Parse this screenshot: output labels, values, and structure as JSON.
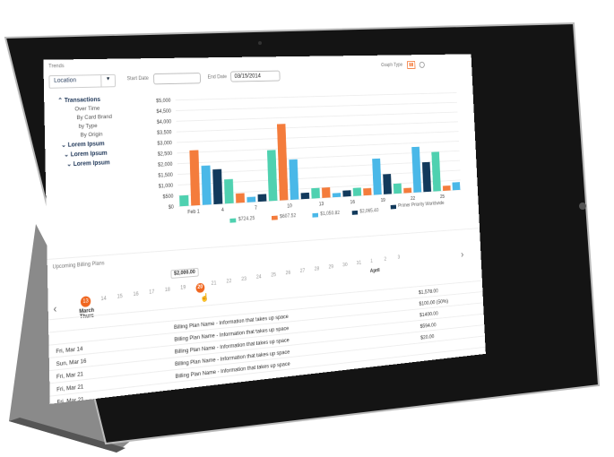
{
  "app": {
    "section_title": "Trends"
  },
  "filters": {
    "location_label": "Location",
    "start_date_label": "Start Date",
    "start_date_value": "",
    "end_date_label": "End Date",
    "end_date_value": "03/15/2014",
    "graph_type_label": "Graph Type"
  },
  "sidebar": {
    "groups": [
      {
        "label": "Transactions",
        "expanded": true,
        "items": [
          "Over Time",
          "By Card Brand",
          "by Type",
          "By Origin"
        ]
      },
      {
        "label": "Lorem Ipsum",
        "expanded": false
      },
      {
        "label": "Lorem Ipsum",
        "expanded": false
      },
      {
        "label": "Lorem Ipsum",
        "expanded": false
      }
    ]
  },
  "colors": {
    "teal": "#4fd1b0",
    "orange": "#f47c3c",
    "blue": "#4ab8e8",
    "navy": "#123a5c",
    "accent": "#f0661f"
  },
  "chart_data": {
    "type": "bar",
    "y_ticks": [
      "$0",
      "$500",
      "$1,000",
      "$1,500",
      "$2,000",
      "$2,500",
      "$3,000",
      "$3,500",
      "$4,000",
      "$4,500",
      "$5,000"
    ],
    "ylim": [
      0,
      5000
    ],
    "x_ticks": [
      "Feb 1",
      "4",
      "7",
      "10",
      "13",
      "16",
      "19",
      "22",
      "25"
    ],
    "bars": [
      {
        "s": 0,
        "v": 500
      },
      {
        "s": 1,
        "v": 2600
      },
      {
        "s": 2,
        "v": 1850
      },
      {
        "s": 3,
        "v": 1650
      },
      {
        "s": 0,
        "v": 1150
      },
      {
        "s": 1,
        "v": 450
      },
      {
        "s": 2,
        "v": 250
      },
      {
        "s": 3,
        "v": 350
      },
      {
        "s": 0,
        "v": 2450
      },
      {
        "s": 1,
        "v": 3700
      },
      {
        "s": 2,
        "v": 1950
      },
      {
        "s": 3,
        "v": 300
      },
      {
        "s": 0,
        "v": 500
      },
      {
        "s": 1,
        "v": 500
      },
      {
        "s": 2,
        "v": 200
      },
      {
        "s": 3,
        "v": 300
      },
      {
        "s": 0,
        "v": 400
      },
      {
        "s": 1,
        "v": 350
      },
      {
        "s": 2,
        "v": 1800
      },
      {
        "s": 3,
        "v": 1000
      },
      {
        "s": 0,
        "v": 500
      },
      {
        "s": 1,
        "v": 250
      },
      {
        "s": 2,
        "v": 2300
      },
      {
        "s": 3,
        "v": 1500
      },
      {
        "s": 0,
        "v": 2000
      },
      {
        "s": 1,
        "v": 250
      },
      {
        "s": 2,
        "v": 400
      }
    ],
    "legend": [
      {
        "name": "$724.25",
        "color": "#4fd1b0"
      },
      {
        "name": "$607.52",
        "color": "#f47c3c"
      },
      {
        "name": "$1,050.82",
        "color": "#4ab8e8"
      },
      {
        "name": "$2,065.40",
        "color": "#123a5c"
      },
      {
        "name": "Primer Priority Worldwide",
        "color": "#123a5c"
      }
    ],
    "grid": true
  },
  "billing": {
    "title": "Upcoming Billing Plans",
    "tooltip": "$2,000.00",
    "today": {
      "day": "13",
      "month": "March",
      "weekday": "Thurs"
    },
    "days": [
      "14",
      "15",
      "16",
      "17",
      "18",
      "19",
      "20",
      "21",
      "22",
      "23",
      "24",
      "25",
      "26",
      "27",
      "28",
      "29",
      "30",
      "31",
      "1",
      "2",
      "3"
    ],
    "selected_day": "20",
    "month_next": "April",
    "rows": [
      {
        "date": "",
        "plan": "",
        "amount": "$1,578.00"
      },
      {
        "date": "",
        "plan": "Billing Plan Name - Information that takes up space",
        "amount": "$100.00 (50%)"
      },
      {
        "date": "Fri, Mar 14",
        "plan": "Billing Plan Name - Information that takes up space",
        "amount": "$1400.00"
      },
      {
        "date": "Sun, Mar 16",
        "plan": "Billing Plan Name - Information that takes up space",
        "amount": "$594.00"
      },
      {
        "date": "Fri, Mar 21",
        "plan": "Billing Plan Name - Information that takes up space",
        "amount": "$20.00"
      },
      {
        "date": "Fri, Mar 21",
        "plan": "Billing Plan Name - Information that takes up space",
        "amount": ""
      },
      {
        "date": "Fri, Mar 21",
        "plan": "",
        "amount": ""
      }
    ]
  }
}
